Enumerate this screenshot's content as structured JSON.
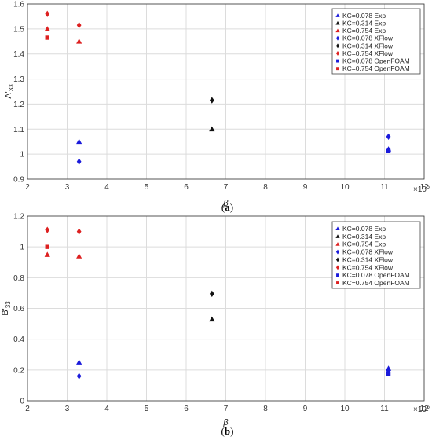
{
  "colors": {
    "blue": "#1a1adb",
    "black": "#111111",
    "red": "#dd2020"
  },
  "chart_data": [
    {
      "type": "scatter",
      "panel": "a",
      "caption_letter": "a",
      "xlabel": "β",
      "ylabel": "A'33",
      "x_multiplier": "×10^5",
      "xlim": [
        2,
        12
      ],
      "ylim": [
        0.9,
        1.6
      ],
      "xticks": [
        "2",
        "3",
        "4",
        "5",
        "6",
        "7",
        "8",
        "9",
        "10",
        "11",
        "12"
      ],
      "yticks": [
        "0.9",
        "1",
        "1.1",
        "1.2",
        "1.3",
        "1.4",
        "1.5",
        "1.6"
      ],
      "grid": true,
      "legend_position": "top-right",
      "series": [
        {
          "name": "KC=0.078 Exp",
          "marker": "triangle",
          "color": "blue",
          "points": [
            [
              3.3,
              1.05
            ],
            [
              11.1,
              1.02
            ]
          ]
        },
        {
          "name": "KC=0.314 Exp",
          "marker": "triangle",
          "color": "black",
          "points": [
            [
              6.65,
              1.1
            ]
          ]
        },
        {
          "name": "KC=0.754 Exp",
          "marker": "triangle",
          "color": "red",
          "points": [
            [
              2.5,
              1.5
            ],
            [
              3.3,
              1.45
            ]
          ]
        },
        {
          "name": "KC=0.078 XFlow",
          "marker": "diamond",
          "color": "blue",
          "points": [
            [
              3.3,
              0.97
            ],
            [
              11.1,
              1.07
            ]
          ]
        },
        {
          "name": "KC=0.314 XFlow",
          "marker": "diamond",
          "color": "black",
          "points": [
            [
              6.65,
              1.215
            ]
          ]
        },
        {
          "name": "KC=0.754 XFlow",
          "marker": "diamond",
          "color": "red",
          "points": [
            [
              2.5,
              1.56
            ],
            [
              3.3,
              1.515
            ]
          ]
        },
        {
          "name": "KC=0.078 OpenFOAM",
          "marker": "square",
          "color": "blue",
          "points": [
            [
              11.1,
              1.012
            ]
          ]
        },
        {
          "name": "KC=0.754 OpenFOAM",
          "marker": "square",
          "color": "red",
          "points": [
            [
              2.5,
              1.465
            ]
          ]
        }
      ]
    },
    {
      "type": "scatter",
      "panel": "b",
      "caption_letter": "b",
      "xlabel": "β",
      "ylabel": "B'33",
      "x_multiplier": "×10^5",
      "xlim": [
        2,
        12
      ],
      "ylim": [
        0,
        1.2
      ],
      "xticks": [
        "2",
        "3",
        "4",
        "5",
        "6",
        "7",
        "8",
        "9",
        "10",
        "11",
        "12"
      ],
      "yticks": [
        "0",
        "0.2",
        "0.4",
        "0.6",
        "0.8",
        "1",
        "1.2"
      ],
      "grid": true,
      "legend_position": "top-right",
      "series": [
        {
          "name": "KC=0.078 Exp",
          "marker": "triangle",
          "color": "blue",
          "points": [
            [
              3.3,
              0.25
            ],
            [
              11.1,
              0.21
            ]
          ]
        },
        {
          "name": "KC=0.314 Exp",
          "marker": "triangle",
          "color": "black",
          "points": [
            [
              6.65,
              0.53
            ]
          ]
        },
        {
          "name": "KC=0.754 Exp",
          "marker": "triangle",
          "color": "red",
          "points": [
            [
              2.5,
              0.95
            ],
            [
              3.3,
              0.94
            ]
          ]
        },
        {
          "name": "KC=0.078 XFlow",
          "marker": "diamond",
          "color": "blue",
          "points": [
            [
              3.3,
              0.16
            ],
            [
              11.1,
              0.195
            ]
          ]
        },
        {
          "name": "KC=0.314 XFlow",
          "marker": "diamond",
          "color": "black",
          "points": [
            [
              6.65,
              0.695
            ]
          ]
        },
        {
          "name": "KC=0.754 XFlow",
          "marker": "diamond",
          "color": "red",
          "points": [
            [
              2.5,
              1.11
            ],
            [
              3.3,
              1.1
            ]
          ]
        },
        {
          "name": "KC=0.078 OpenFOAM",
          "marker": "square",
          "color": "blue",
          "points": [
            [
              11.1,
              0.175
            ]
          ]
        },
        {
          "name": "KC=0.754 OpenFOAM",
          "marker": "square",
          "color": "red",
          "points": [
            [
              2.5,
              1.0
            ]
          ]
        }
      ]
    }
  ]
}
